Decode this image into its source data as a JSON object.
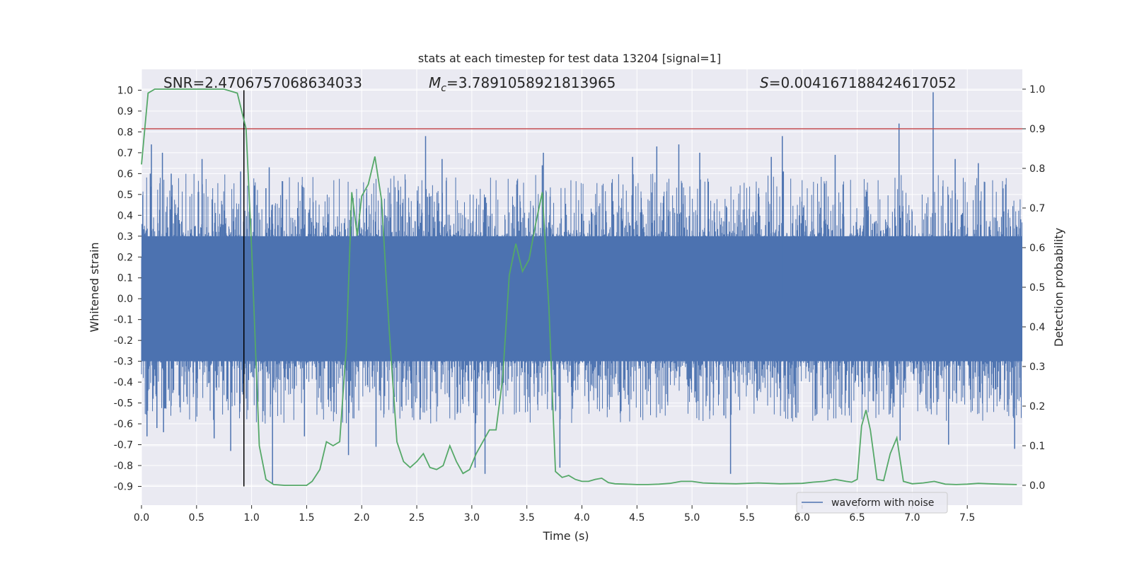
{
  "chart_data": {
    "type": "line",
    "title": "stats at each timestep for test data 13204 [signal=1]",
    "xlabel": "Time (s)",
    "ylabel_left": "Whitened strain",
    "ylabel_right": "Detection probability",
    "xlim": [
      0.0,
      8.0
    ],
    "ylim_left": [
      -0.99,
      1.1
    ],
    "ylim_right": [
      -0.05,
      1.05
    ],
    "xticks": [
      "0.0",
      "0.5",
      "1.0",
      "1.5",
      "2.0",
      "2.5",
      "3.0",
      "3.5",
      "4.0",
      "4.5",
      "5.0",
      "5.5",
      "6.0",
      "6.5",
      "7.0",
      "7.5"
    ],
    "yticks_left": [
      "1.0",
      "0.9",
      "0.8",
      "0.7",
      "0.6",
      "0.5",
      "0.4",
      "0.3",
      "0.2",
      "0.1",
      "0.0",
      "-0.1",
      "-0.2",
      "-0.3",
      "-0.4",
      "-0.5",
      "-0.6",
      "-0.7",
      "-0.8",
      "-0.9"
    ],
    "yticks_right": [
      "1.0",
      "0.9",
      "0.8",
      "0.7",
      "0.6",
      "0.5",
      "0.4",
      "0.3",
      "0.2",
      "0.1",
      "0.0"
    ],
    "grid": true,
    "legend_position": "lower right",
    "annotations": {
      "snr": "SNR=2.4706757068634033",
      "mc_symbol": "M",
      "mc_sub": "c",
      "mc_value": "=3.7891058921813965",
      "s_symbol": "S",
      "s_value": "=0.004167188424617052"
    },
    "colors": {
      "background": "#eaeaf2",
      "waveform": "#4c72b0",
      "probability": "#55a868",
      "threshold": "#c44e52",
      "marker": "#000000"
    },
    "threshold_line": {
      "y_right": 0.9
    },
    "vertical_marker": {
      "x": 0.93,
      "y_from": -0.9,
      "y_to": 1.0
    },
    "series": [
      {
        "name": "waveform with noise",
        "kind": "noise-waveform",
        "x_range": [
          0.0,
          8.0
        ],
        "core_amplitude": 0.3,
        "typical_peak_range": [
          -0.6,
          0.6
        ],
        "spikes": [
          {
            "x": 0.05,
            "y": -0.66
          },
          {
            "x": 0.08,
            "y": 0.6
          },
          {
            "x": 0.09,
            "y": 0.74
          },
          {
            "x": 0.14,
            "y": -0.62
          },
          {
            "x": 0.2,
            "y": -0.64
          },
          {
            "x": 0.19,
            "y": 0.7
          },
          {
            "x": 0.27,
            "y": 0.6
          },
          {
            "x": 0.55,
            "y": 0.67
          },
          {
            "x": 0.66,
            "y": -0.67
          },
          {
            "x": 0.81,
            "y": -0.73
          },
          {
            "x": 0.9,
            "y": 0.61
          },
          {
            "x": 1.13,
            "y": 0.53
          },
          {
            "x": 1.16,
            "y": 0.63
          },
          {
            "x": 1.19,
            "y": -0.89
          },
          {
            "x": 1.48,
            "y": -0.66
          },
          {
            "x": 1.88,
            "y": -0.75
          },
          {
            "x": 2.13,
            "y": -0.71
          },
          {
            "x": 2.58,
            "y": 0.78
          },
          {
            "x": 2.53,
            "y": -0.58
          },
          {
            "x": 2.73,
            "y": 0.67
          },
          {
            "x": 3.03,
            "y": -0.81
          },
          {
            "x": 3.12,
            "y": -0.84
          },
          {
            "x": 3.64,
            "y": 0.64
          },
          {
            "x": 3.8,
            "y": -0.81
          },
          {
            "x": 3.65,
            "y": 0.7
          },
          {
            "x": 4.46,
            "y": 0.68
          },
          {
            "x": 4.68,
            "y": 0.73
          },
          {
            "x": 4.88,
            "y": 0.74
          },
          {
            "x": 5.07,
            "y": 0.7
          },
          {
            "x": 5.29,
            "y": -0.56
          },
          {
            "x": 5.35,
            "y": -0.84
          },
          {
            "x": 5.72,
            "y": 0.68
          },
          {
            "x": 5.82,
            "y": 0.78
          },
          {
            "x": 5.83,
            "y": 0.61
          },
          {
            "x": 6.3,
            "y": 0.69
          },
          {
            "x": 6.88,
            "y": 0.84
          },
          {
            "x": 6.89,
            "y": -0.68
          },
          {
            "x": 7.19,
            "y": 0.99
          },
          {
            "x": 7.33,
            "y": -0.7
          },
          {
            "x": 7.39,
            "y": 0.67
          },
          {
            "x": 7.93,
            "y": -0.72
          },
          {
            "x": 7.6,
            "y": 0.65
          }
        ]
      },
      {
        "name": "",
        "axis": "right",
        "x": [
          0.0,
          0.06,
          0.12,
          0.6,
          0.75,
          0.87,
          0.95,
          1.0,
          1.07,
          1.13,
          1.2,
          1.3,
          1.4,
          1.5,
          1.55,
          1.62,
          1.68,
          1.74,
          1.8,
          1.86,
          1.91,
          1.96,
          2.0,
          2.06,
          2.12,
          2.18,
          2.25,
          2.32,
          2.38,
          2.44,
          2.5,
          2.56,
          2.62,
          2.68,
          2.74,
          2.8,
          2.86,
          2.92,
          2.98,
          3.04,
          3.1,
          3.16,
          3.22,
          3.28,
          3.34,
          3.4,
          3.46,
          3.52,
          3.58,
          3.64,
          3.7,
          3.76,
          3.82,
          3.88,
          3.94,
          4.0,
          4.06,
          4.12,
          4.18,
          4.24,
          4.3,
          4.4,
          4.5,
          4.6,
          4.7,
          4.8,
          4.9,
          5.0,
          5.1,
          5.2,
          5.4,
          5.6,
          5.8,
          6.0,
          6.1,
          6.2,
          6.3,
          6.4,
          6.45,
          6.5,
          6.54,
          6.58,
          6.62,
          6.68,
          6.74,
          6.8,
          6.86,
          6.92,
          7.0,
          7.1,
          7.2,
          7.3,
          7.4,
          7.5,
          7.6,
          7.7,
          7.8,
          7.95
        ],
        "y": [
          0.81,
          0.99,
          1.0,
          1.0,
          1.0,
          0.99,
          0.9,
          0.6,
          0.1,
          0.015,
          0.002,
          0.0,
          0.0,
          0.0,
          0.01,
          0.04,
          0.11,
          0.1,
          0.11,
          0.35,
          0.74,
          0.63,
          0.73,
          0.76,
          0.83,
          0.72,
          0.39,
          0.11,
          0.06,
          0.045,
          0.06,
          0.08,
          0.045,
          0.04,
          0.05,
          0.1,
          0.06,
          0.03,
          0.04,
          0.08,
          0.11,
          0.14,
          0.14,
          0.27,
          0.53,
          0.61,
          0.54,
          0.57,
          0.66,
          0.74,
          0.45,
          0.035,
          0.02,
          0.025,
          0.015,
          0.01,
          0.01,
          0.015,
          0.018,
          0.007,
          0.004,
          0.003,
          0.002,
          0.002,
          0.003,
          0.005,
          0.01,
          0.01,
          0.006,
          0.005,
          0.004,
          0.006,
          0.004,
          0.005,
          0.008,
          0.01,
          0.015,
          0.01,
          0.008,
          0.015,
          0.15,
          0.19,
          0.14,
          0.015,
          0.012,
          0.08,
          0.12,
          0.01,
          0.004,
          0.006,
          0.01,
          0.003,
          0.002,
          0.003,
          0.005,
          0.004,
          0.003,
          0.002
        ]
      }
    ]
  }
}
